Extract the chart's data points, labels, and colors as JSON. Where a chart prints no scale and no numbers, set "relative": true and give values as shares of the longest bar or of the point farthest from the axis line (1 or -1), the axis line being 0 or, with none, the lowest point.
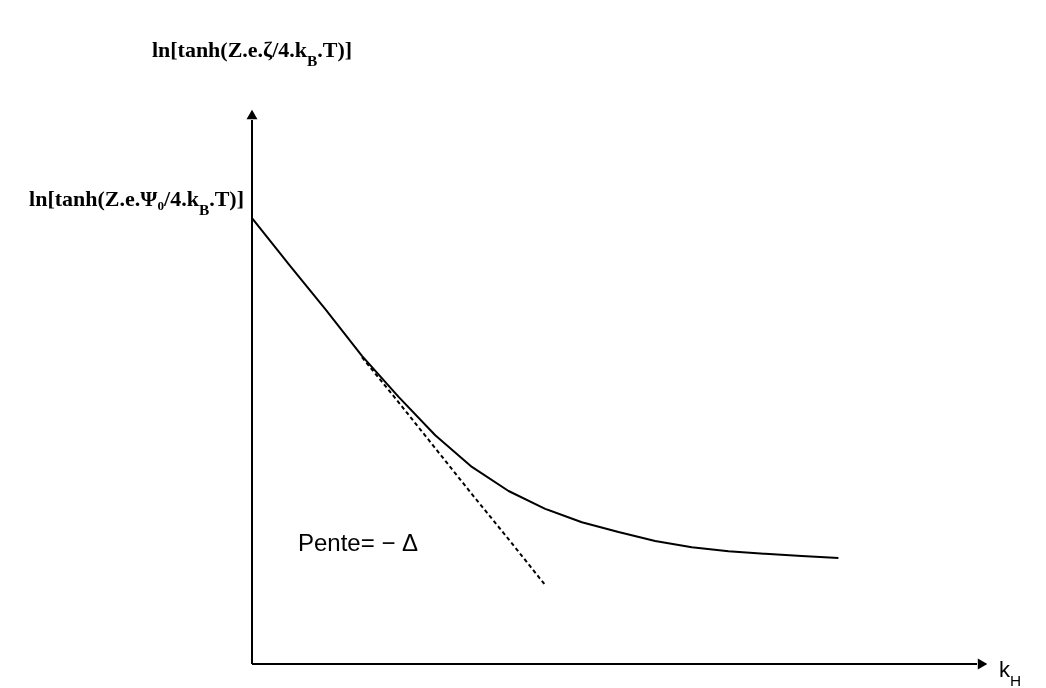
{
  "chart_data": {
    "type": "line",
    "relative": true,
    "categories": [
      null,
      null,
      null,
      null,
      null,
      null,
      null,
      null,
      null,
      null,
      null,
      null,
      null,
      null,
      null,
      null,
      null
    ],
    "series": [
      {
        "color": "#000000",
        "line_style": "solid",
        "values": [
          1,
          0.897,
          0.796,
          0.691,
          0.599,
          0.513,
          0.442,
          0.388,
          0.348,
          0.318,
          0.296,
          0.276,
          0.262,
          0.253,
          0.247,
          0.242,
          0.238
        ]
      },
      {
        "color": "#000000",
        "line_style": "dashed",
        "values": [
          null,
          null,
          null,
          0.688,
          0.587,
          0.484,
          0.381,
          0.28,
          0.177,
          null,
          null,
          null,
          null,
          null,
          null,
          null,
          null
        ]
      }
    ],
    "annotations": [
      "ln[tanh(Z.e.ζ/4.k$_{B}$.T)]",
      "k$_{H}$",
      "ln[tanh(Z.e.Ψ₀/4.k$_{B}$.T)]",
      "Pente= − Δ"
    ],
    "marker": "none"
  }
}
